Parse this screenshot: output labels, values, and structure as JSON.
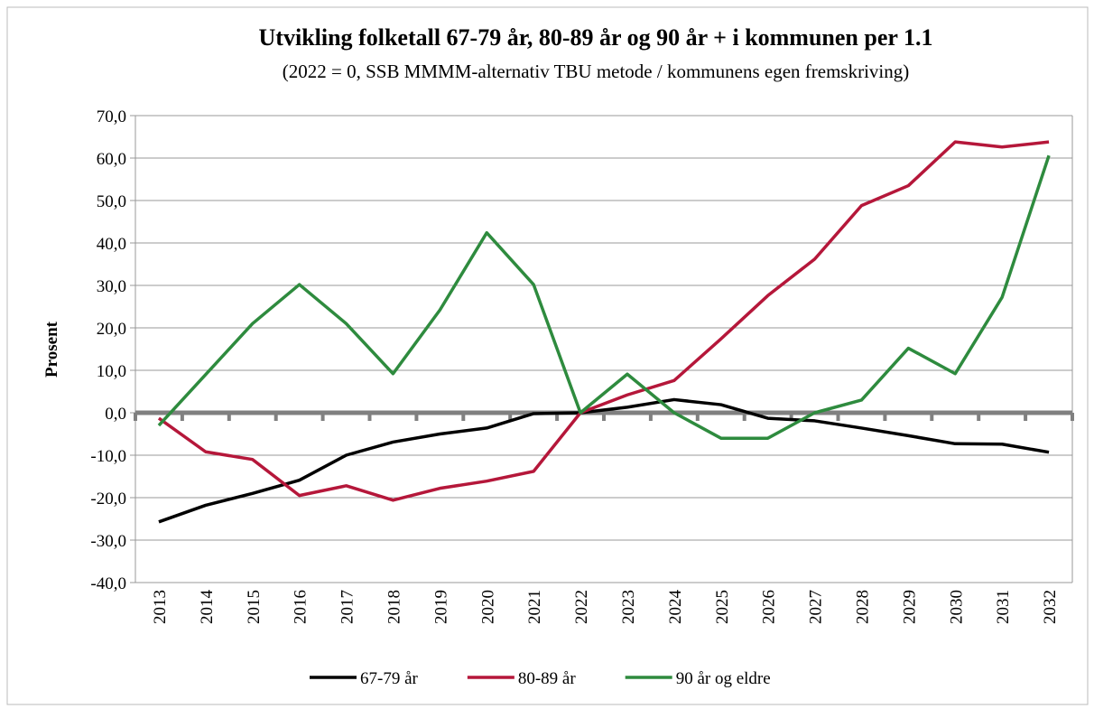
{
  "chart_data": {
    "type": "line",
    "title": "Utvikling folketall 67-79 år, 80-89 år og 90 år + i kommunen per 1.1",
    "subtitle": "(2022 = 0, SSB MMMM-alternativ TBU metode / kommunens egen fremskriving)",
    "y_label": "Prosent",
    "categories": [
      "2013",
      "2014",
      "2015",
      "2016",
      "2017",
      "2018",
      "2019",
      "2020",
      "2021",
      "2022",
      "2023",
      "2024",
      "2025",
      "2026",
      "2027",
      "2028",
      "2029",
      "2030",
      "2031",
      "2032"
    ],
    "series": [
      {
        "name": "67-79 år",
        "color": "#000000",
        "values": [
          -25.7,
          -21.8,
          -19,
          -15.9,
          -10,
          -6.9,
          -5,
          -3.6,
          -0.2,
          0,
          1.3,
          3.1,
          1.9,
          -1.3,
          -1.9,
          -3.6,
          -5.4,
          -7.3,
          -7.4,
          -9.3
        ]
      },
      {
        "name": "80-89 år",
        "color": "#b5173a",
        "values": [
          -1.3,
          -9.2,
          -11,
          -19.5,
          -17.2,
          -20.6,
          -17.8,
          -16.1,
          -13.8,
          0,
          4.2,
          7.6,
          17.4,
          27.6,
          36.2,
          48.8,
          53.5,
          63.8,
          62.6,
          63.8
        ]
      },
      {
        "name": "90 år og eldre",
        "color": "#2e8b3e",
        "values": [
          -3,
          9,
          21,
          30.2,
          21,
          9.2,
          24.2,
          42.4,
          30.2,
          0,
          9.1,
          0,
          -6,
          -6,
          0,
          3,
          15.2,
          9.2,
          27.2,
          60.6
        ]
      }
    ],
    "ylim": [
      -40,
      70
    ],
    "yticks": [
      {
        "value": -40,
        "label": "-40,0"
      },
      {
        "value": -30,
        "label": "-30,0"
      },
      {
        "value": -20,
        "label": "-20,0"
      },
      {
        "value": -10,
        "label": "-10,0"
      },
      {
        "value": 0,
        "label": "0,0"
      },
      {
        "value": 10,
        "label": "10,0"
      },
      {
        "value": 20,
        "label": "20,0"
      },
      {
        "value": 30,
        "label": "30,0"
      },
      {
        "value": 40,
        "label": "40,0"
      },
      {
        "value": 50,
        "label": "50,0"
      },
      {
        "value": 60,
        "label": "60,0"
      },
      {
        "value": 70,
        "label": "70,0"
      }
    ],
    "grid": true,
    "legend": "bottom"
  }
}
